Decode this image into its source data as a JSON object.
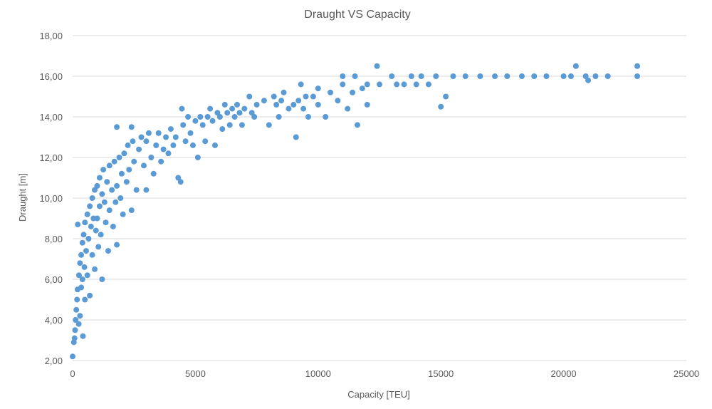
{
  "chart_data": {
    "type": "scatter",
    "title": "Draught VS Capacity",
    "xlabel": "Capacity [TEU]",
    "ylabel": "Draught [m]",
    "xlim": [
      0,
      25000
    ],
    "ylim": [
      2,
      18
    ],
    "x_ticks": [
      "0",
      "5000",
      "10000",
      "15000",
      "20000",
      "25000"
    ],
    "y_ticks": [
      "2,00",
      "4,00",
      "6,00",
      "8,00",
      "10,00",
      "12,00",
      "14,00",
      "16,00",
      "18,00"
    ],
    "grid": "horizontal",
    "legend": "none",
    "color": "#5b9bd5",
    "points": [
      [
        0,
        2.2
      ],
      [
        50,
        2.9
      ],
      [
        80,
        3.1
      ],
      [
        100,
        3.5
      ],
      [
        120,
        4.0
      ],
      [
        150,
        4.5
      ],
      [
        180,
        5.0
      ],
      [
        200,
        5.5
      ],
      [
        210,
        8.7
      ],
      [
        250,
        3.8
      ],
      [
        260,
        6.2
      ],
      [
        300,
        4.2
      ],
      [
        300,
        6.8
      ],
      [
        350,
        5.6
      ],
      [
        350,
        7.2
      ],
      [
        400,
        6.0
      ],
      [
        400,
        7.8
      ],
      [
        420,
        3.2
      ],
      [
        450,
        8.2
      ],
      [
        480,
        6.6
      ],
      [
        500,
        5.0
      ],
      [
        500,
        8.8
      ],
      [
        550,
        7.4
      ],
      [
        600,
        9.2
      ],
      [
        600,
        6.2
      ],
      [
        650,
        8.0
      ],
      [
        700,
        9.6
      ],
      [
        700,
        5.2
      ],
      [
        750,
        8.6
      ],
      [
        800,
        10.0
      ],
      [
        800,
        7.2
      ],
      [
        850,
        9.0
      ],
      [
        900,
        10.4
      ],
      [
        900,
        6.5
      ],
      [
        950,
        8.4
      ],
      [
        1000,
        10.6
      ],
      [
        1000,
        9.0
      ],
      [
        1050,
        7.6
      ],
      [
        1100,
        11.0
      ],
      [
        1100,
        9.6
      ],
      [
        1150,
        8.2
      ],
      [
        1200,
        10.2
      ],
      [
        1200,
        6.0
      ],
      [
        1250,
        11.4
      ],
      [
        1300,
        9.8
      ],
      [
        1350,
        8.8
      ],
      [
        1400,
        10.8
      ],
      [
        1450,
        7.4
      ],
      [
        1500,
        11.6
      ],
      [
        1500,
        9.4
      ],
      [
        1600,
        10.4
      ],
      [
        1650,
        8.6
      ],
      [
        1700,
        11.8
      ],
      [
        1750,
        9.8
      ],
      [
        1800,
        10.6
      ],
      [
        1800,
        13.5
      ],
      [
        1800,
        7.7
      ],
      [
        1900,
        12.0
      ],
      [
        1950,
        10.0
      ],
      [
        2000,
        11.2
      ],
      [
        2050,
        9.2
      ],
      [
        2100,
        12.2
      ],
      [
        2200,
        10.8
      ],
      [
        2250,
        12.6
      ],
      [
        2300,
        11.4
      ],
      [
        2400,
        13.5
      ],
      [
        2400,
        9.4
      ],
      [
        2450,
        12.8
      ],
      [
        2500,
        11.8
      ],
      [
        2600,
        10.4
      ],
      [
        2700,
        12.4
      ],
      [
        2800,
        13.0
      ],
      [
        2900,
        11.6
      ],
      [
        3000,
        12.8
      ],
      [
        3000,
        10.4
      ],
      [
        3100,
        13.2
      ],
      [
        3200,
        12.0
      ],
      [
        3300,
        11.2
      ],
      [
        3400,
        12.6
      ],
      [
        3500,
        13.2
      ],
      [
        3600,
        11.8
      ],
      [
        3700,
        12.4
      ],
      [
        3800,
        13.0
      ],
      [
        3900,
        12.2
      ],
      [
        4000,
        13.4
      ],
      [
        4100,
        12.6
      ],
      [
        4200,
        13.0
      ],
      [
        4300,
        11.0
      ],
      [
        4400,
        10.8
      ],
      [
        4450,
        14.4
      ],
      [
        4500,
        13.6
      ],
      [
        4600,
        12.8
      ],
      [
        4700,
        14.0
      ],
      [
        4800,
        13.2
      ],
      [
        4900,
        12.6
      ],
      [
        5000,
        13.8
      ],
      [
        5100,
        12.0
      ],
      [
        5200,
        14.0
      ],
      [
        5300,
        13.6
      ],
      [
        5400,
        12.8
      ],
      [
        5500,
        14.0
      ],
      [
        5600,
        14.4
      ],
      [
        5700,
        13.8
      ],
      [
        5800,
        12.6
      ],
      [
        5900,
        14.2
      ],
      [
        6000,
        14.0
      ],
      [
        6100,
        13.4
      ],
      [
        6200,
        14.6
      ],
      [
        6300,
        14.2
      ],
      [
        6400,
        13.6
      ],
      [
        6500,
        14.4
      ],
      [
        6600,
        14.0
      ],
      [
        6700,
        14.6
      ],
      [
        6800,
        14.2
      ],
      [
        6900,
        13.6
      ],
      [
        7000,
        14.4
      ],
      [
        7200,
        15.0
      ],
      [
        7300,
        14.2
      ],
      [
        7400,
        14.0
      ],
      [
        7500,
        14.6
      ],
      [
        7800,
        14.8
      ],
      [
        8000,
        13.6
      ],
      [
        8200,
        15.0
      ],
      [
        8300,
        14.6
      ],
      [
        8400,
        14.0
      ],
      [
        8500,
        14.8
      ],
      [
        8600,
        15.2
      ],
      [
        8800,
        14.4
      ],
      [
        9000,
        14.6
      ],
      [
        9100,
        13.0
      ],
      [
        9200,
        14.8
      ],
      [
        9300,
        15.6
      ],
      [
        9400,
        14.4
      ],
      [
        9500,
        15.0
      ],
      [
        9600,
        14.0
      ],
      [
        9800,
        15.0
      ],
      [
        10000,
        15.4
      ],
      [
        10000,
        14.6
      ],
      [
        10300,
        14.0
      ],
      [
        10500,
        15.2
      ],
      [
        10800,
        14.8
      ],
      [
        11000,
        16.0
      ],
      [
        11000,
        15.6
      ],
      [
        11200,
        14.4
      ],
      [
        11400,
        15.2
      ],
      [
        11500,
        16.0
      ],
      [
        11600,
        13.6
      ],
      [
        11800,
        15.4
      ],
      [
        12000,
        15.6
      ],
      [
        12000,
        14.6
      ],
      [
        12400,
        16.5
      ],
      [
        12500,
        15.6
      ],
      [
        13000,
        16.0
      ],
      [
        13200,
        15.6
      ],
      [
        13500,
        15.6
      ],
      [
        13800,
        16.0
      ],
      [
        14000,
        15.6
      ],
      [
        14200,
        16.0
      ],
      [
        14500,
        15.6
      ],
      [
        14800,
        16.0
      ],
      [
        15000,
        14.5
      ],
      [
        15200,
        15.0
      ],
      [
        15500,
        16.0
      ],
      [
        16000,
        16.0
      ],
      [
        16600,
        16.0
      ],
      [
        17200,
        16.0
      ],
      [
        17700,
        16.0
      ],
      [
        18300,
        16.0
      ],
      [
        18800,
        16.0
      ],
      [
        19300,
        16.0
      ],
      [
        20000,
        16.0
      ],
      [
        20300,
        16.0
      ],
      [
        20500,
        16.5
      ],
      [
        20900,
        16.0
      ],
      [
        21000,
        15.8
      ],
      [
        21300,
        16.0
      ],
      [
        21800,
        16.0
      ],
      [
        23000,
        16.5
      ],
      [
        23000,
        16.0
      ]
    ]
  }
}
